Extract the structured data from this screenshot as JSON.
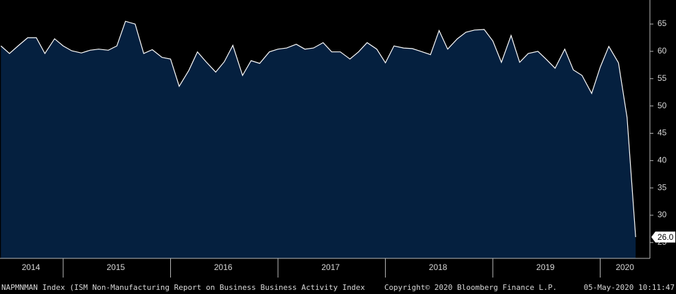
{
  "chart_data": {
    "type": "area",
    "series": [
      {
        "name": "NAPMNMAN Index (ISM Non-Manufacturing Report on Business Business Activity Index",
        "fill": "#05203f",
        "color": "#ffffff",
        "x": [
          2014.42,
          2014.5,
          2014.58,
          2014.67,
          2014.75,
          2014.83,
          2014.92,
          2015.0,
          2015.08,
          2015.17,
          2015.25,
          2015.33,
          2015.42,
          2015.5,
          2015.58,
          2015.67,
          2015.75,
          2015.83,
          2015.92,
          2016.0,
          2016.08,
          2016.17,
          2016.25,
          2016.33,
          2016.42,
          2016.5,
          2016.58,
          2016.67,
          2016.75,
          2016.83,
          2016.92,
          2017.0,
          2017.08,
          2017.17,
          2017.25,
          2017.33,
          2017.42,
          2017.5,
          2017.58,
          2017.67,
          2017.75,
          2017.83,
          2017.92,
          2018.0,
          2018.08,
          2018.17,
          2018.25,
          2018.33,
          2018.42,
          2018.5,
          2018.58,
          2018.67,
          2018.75,
          2018.83,
          2018.92,
          2019.0,
          2019.08,
          2019.17,
          2019.25,
          2019.33,
          2019.42,
          2019.5,
          2019.58,
          2019.67,
          2019.75,
          2019.83,
          2019.92,
          2020.0,
          2020.08,
          2020.17,
          2020.25,
          2020.33
        ],
        "values": [
          61.0,
          59.6,
          61.0,
          62.5,
          62.5,
          59.6,
          62.3,
          61.0,
          60.1,
          59.7,
          60.2,
          60.4,
          60.2,
          61.0,
          65.5,
          65.0,
          59.6,
          60.3,
          58.9,
          58.6,
          53.6,
          56.5,
          59.9,
          58.1,
          56.2,
          58.1,
          61.1,
          55.6,
          58.3,
          57.8,
          59.9,
          60.4,
          60.6,
          61.3,
          60.4,
          60.6,
          61.6,
          59.9,
          59.9,
          58.6,
          59.9,
          61.6,
          60.4,
          57.9,
          61.0,
          60.6,
          60.5,
          60.0,
          59.4,
          63.8,
          60.4,
          62.3,
          63.5,
          63.9,
          64.0,
          61.9,
          58.0,
          62.9,
          58.0,
          59.6,
          60.0,
          58.5,
          56.9,
          60.4,
          56.6,
          55.6,
          52.3,
          57.1,
          60.9,
          57.9,
          47.9,
          26.0
        ],
        "last_value_label": "26.0"
      }
    ],
    "xlim": [
      2014.412,
      2020.45
    ],
    "xticks": [
      2015,
      2016,
      2017,
      2018,
      2019,
      2020
    ],
    "xlabels": [
      {
        "value": 2014.7,
        "label": "2014"
      },
      {
        "value": 2015.49,
        "label": "2015"
      },
      {
        "value": 2016.49,
        "label": "2016"
      },
      {
        "value": 2017.49,
        "label": "2017"
      },
      {
        "value": 2018.49,
        "label": "2018"
      },
      {
        "value": 2019.49,
        "label": "2019"
      },
      {
        "value": 2020.23,
        "label": "2020"
      }
    ],
    "ylim": [
      22.1,
      69.4
    ],
    "yticks": [
      25,
      30,
      35,
      40,
      45,
      50,
      55,
      60,
      65
    ],
    "footer": {
      "source": "NAPMNMAN Index (ISM Non-Manufacturing Report on Business Business Activity Index",
      "copyright": "Copyright© 2020 Bloomberg Finance L.P.",
      "timestamp": "05-May-2020 10:11:47"
    }
  }
}
